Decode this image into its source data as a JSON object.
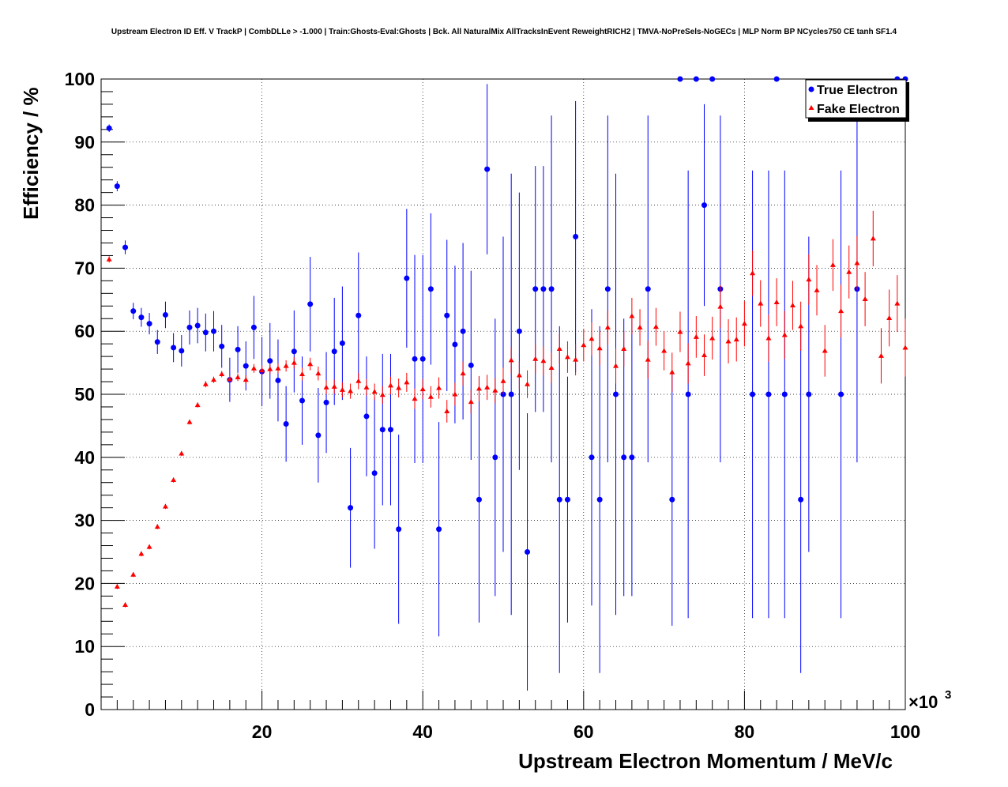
{
  "chart_data": {
    "type": "scatter",
    "title": "Upstream Electron ID Eff. V TrackP | CombDLLe > -1.000 | Train:Ghosts-Eval:Ghosts | Bck. All NaturalMix AllTracksInEvent ReweightRICH2 | TMVA-NoPreSels-NoGECs | MLP Norm BP NCycles750 CE tanh SF1.4",
    "xlabel": "Upstream Electron Momentum / MeV/c",
    "ylabel": "Efficiency / %",
    "x_multiplier": "×10",
    "x_multiplier_exp": "3",
    "xlim": [
      0,
      100
    ],
    "ylim": [
      0,
      100
    ],
    "xticks": [
      "20",
      "40",
      "60",
      "80",
      "100"
    ],
    "yticks": [
      "0",
      "10",
      "20",
      "30",
      "40",
      "50",
      "60",
      "70",
      "80",
      "90",
      "100"
    ],
    "grid": true,
    "legend_position": "top-right",
    "series": [
      {
        "name": "True Electron",
        "color": "#0000ff",
        "marker": "circle",
        "x": [
          1,
          2,
          3,
          4,
          5,
          6,
          7,
          8,
          9,
          10,
          11,
          12,
          13,
          14,
          15,
          16,
          17,
          18,
          19,
          20,
          21,
          22,
          23,
          24,
          25,
          26,
          27,
          28,
          29,
          30,
          31,
          32,
          33,
          34,
          35,
          36,
          37,
          38,
          39,
          40,
          41,
          42,
          43,
          44,
          45,
          46,
          47,
          48,
          49,
          50,
          51,
          52,
          53,
          54,
          55,
          56,
          57,
          58,
          59,
          61,
          62,
          63,
          64,
          65,
          66,
          68,
          71,
          72,
          73,
          74,
          75,
          76,
          77,
          81,
          83,
          84,
          85,
          87,
          88,
          92,
          94,
          99,
          100
        ],
        "y": [
          92.2,
          83.0,
          73.3,
          63.2,
          62.2,
          61.2,
          58.3,
          62.6,
          57.4,
          56.9,
          60.6,
          60.9,
          59.8,
          60.0,
          57.6,
          52.3,
          57.1,
          54.5,
          60.6,
          53.6,
          55.3,
          52.2,
          45.3,
          56.8,
          49.0,
          64.3,
          43.5,
          48.7,
          56.8,
          58.1,
          32.0,
          62.5,
          46.5,
          37.5,
          44.4,
          44.4,
          28.6,
          68.4,
          55.6,
          55.6,
          66.7,
          28.6,
          62.5,
          57.9,
          60.0,
          54.6,
          33.3,
          85.7,
          40.0,
          50.0,
          50.0,
          60.0,
          25.0,
          66.7,
          66.7,
          66.7,
          33.3,
          33.3,
          75.0,
          40.0,
          33.3,
          66.7,
          50.0,
          40.0,
          40.0,
          66.7,
          33.3,
          100,
          50.0,
          100,
          80.0,
          100,
          66.7,
          50.0,
          50.0,
          100,
          50.0,
          33.3,
          50.0,
          50.0,
          66.7,
          100,
          100
        ],
        "err": [
          0.6,
          0.8,
          1.1,
          1.3,
          1.5,
          1.7,
          1.9,
          2.1,
          2.3,
          2.5,
          2.7,
          2.8,
          3.0,
          3.2,
          3.4,
          3.5,
          3.7,
          3.9,
          5.0,
          5.5,
          6.0,
          6.5,
          6.0,
          6.5,
          7.0,
          7.5,
          7.5,
          8.0,
          8.5,
          9.0,
          9.5,
          10.0,
          9.5,
          12.0,
          12.0,
          12.0,
          15.0,
          11.0,
          16.5,
          16.5,
          12.0,
          17.0,
          12.0,
          12.5,
          14.0,
          15.0,
          19.5,
          13.5,
          22.0,
          25.0,
          35.0,
          22.0,
          22.0,
          19.5,
          19.5,
          27.5,
          27.5,
          19.5,
          21.5,
          23.5,
          27.5,
          27.5,
          35.0,
          22.0,
          22.0,
          27.5,
          20.0,
          0,
          35.5,
          0,
          16.0,
          0,
          27.5,
          35.5,
          35.5,
          0,
          35.5,
          27.5,
          25.0,
          35.5,
          27.5,
          0,
          0
        ]
      },
      {
        "name": "Fake Electron",
        "color": "#ff0000",
        "marker": "triangle",
        "x": [
          1,
          2,
          3,
          4,
          5,
          6,
          7,
          8,
          9,
          10,
          11,
          12,
          13,
          14,
          15,
          16,
          17,
          18,
          19,
          20,
          21,
          22,
          23,
          24,
          25,
          26,
          27,
          28,
          29,
          30,
          31,
          32,
          33,
          34,
          35,
          36,
          37,
          38,
          39,
          40,
          41,
          42,
          43,
          44,
          45,
          46,
          47,
          48,
          49,
          50,
          51,
          52,
          53,
          54,
          55,
          56,
          57,
          58,
          59,
          60,
          61,
          62,
          63,
          64,
          65,
          66,
          67,
          68,
          69,
          70,
          71,
          72,
          73,
          74,
          75,
          76,
          77,
          78,
          79,
          80,
          81,
          82,
          83,
          84,
          85,
          86,
          87,
          88,
          89,
          90,
          91,
          92,
          93,
          94,
          95,
          96,
          97,
          98,
          99,
          100
        ],
        "y": [
          71.4,
          19.5,
          16.6,
          21.4,
          24.7,
          25.8,
          29.0,
          32.2,
          36.4,
          40.6,
          45.6,
          48.3,
          51.6,
          52.3,
          53.2,
          52.4,
          52.7,
          52.3,
          54.1,
          53.8,
          54.0,
          54.1,
          54.5,
          55.0,
          53.2,
          54.8,
          53.3,
          51.1,
          51.2,
          50.7,
          50.5,
          52.1,
          51.1,
          50.4,
          49.9,
          51.4,
          51.0,
          51.9,
          49.3,
          50.8,
          49.6,
          51.0,
          47.3,
          50.0,
          53.3,
          48.8,
          50.9,
          51.1,
          50.6,
          52.1,
          55.4,
          53.0,
          51.6,
          55.6,
          55.3,
          54.2,
          57.2,
          55.9,
          55.5,
          57.8,
          58.8,
          57.3,
          60.6,
          54.5,
          57.2,
          62.4,
          60.6,
          55.5,
          60.7,
          56.9,
          53.5,
          59.9,
          54.9,
          59.1,
          56.2,
          58.9,
          63.9,
          58.4,
          58.7,
          61.2,
          69.2,
          64.4,
          58.9,
          64.6,
          59.4,
          64.1,
          60.8,
          68.2,
          66.5,
          56.9,
          70.5,
          63.2,
          69.4,
          70.8,
          65.1,
          74.7,
          56.1,
          62.1,
          64.4,
          57.4
        ],
        "err": [
          0.5,
          0.4,
          0.4,
          0.4,
          0.4,
          0.4,
          0.4,
          0.4,
          0.4,
          0.4,
          0.4,
          0.4,
          0.5,
          0.5,
          0.5,
          0.5,
          0.6,
          0.7,
          0.7,
          0.8,
          0.8,
          0.8,
          0.9,
          0.9,
          1.0,
          1.0,
          1.1,
          1.1,
          1.1,
          1.2,
          1.2,
          1.3,
          1.3,
          1.3,
          1.4,
          1.4,
          1.5,
          1.5,
          1.6,
          1.6,
          1.7,
          1.7,
          1.8,
          1.8,
          1.9,
          1.9,
          2.0,
          2.0,
          2.0,
          2.1,
          2.1,
          2.2,
          2.2,
          2.3,
          2.3,
          2.4,
          2.4,
          2.5,
          2.5,
          2.6,
          2.6,
          2.7,
          2.7,
          2.8,
          2.8,
          2.9,
          2.9,
          3.0,
          3.0,
          3.1,
          3.1,
          3.2,
          3.2,
          3.3,
          3.3,
          3.4,
          3.4,
          3.5,
          3.5,
          3.6,
          3.6,
          3.7,
          3.7,
          3.8,
          3.8,
          3.9,
          3.9,
          4.0,
          4.0,
          4.1,
          4.1,
          4.2,
          4.2,
          4.3,
          4.3,
          4.4,
          4.4,
          4.5,
          4.5,
          4.6
        ]
      }
    ]
  }
}
